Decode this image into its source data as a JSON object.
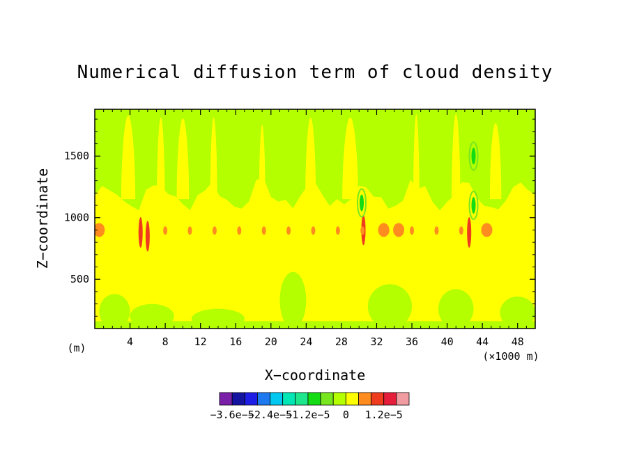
{
  "chart_data": {
    "type": "heatmap",
    "title": "Numerical diffusion term of cloud density",
    "xlabel": "X−coordinate",
    "ylabel": "Z−coordinate",
    "x_unit_label": "(×1000 m)",
    "y_unit_label": "(m)",
    "xlim": [
      0,
      50
    ],
    "ylim": [
      100,
      1880
    ],
    "x_ticks": [
      4,
      8,
      12,
      16,
      20,
      24,
      28,
      32,
      36,
      40,
      44,
      48
    ],
    "x_tick_labels": [
      "4",
      "8",
      "12",
      "16",
      "20",
      "24",
      "28",
      "32",
      "36",
      "40",
      "44",
      "48"
    ],
    "y_ticks": [
      500,
      1000,
      1500
    ],
    "y_tick_labels": [
      "500",
      "1000",
      "1500"
    ],
    "grid": false,
    "colorbar": {
      "orientation": "horizontal",
      "position": "bottom",
      "colors": [
        "#7a1fa8",
        "#1414a0",
        "#1e1ee6",
        "#1e78f0",
        "#00c8f0",
        "#00e6b4",
        "#1ee68c",
        "#14dc14",
        "#78e61e",
        "#b4ff00",
        "#ffff00",
        "#ff8c1e",
        "#f03c1e",
        "#e61e3c",
        "#f09ca0"
      ],
      "tick_labels": [
        "−3.6e−5",
        "−2.4e−5",
        "−1.2e−5",
        "0",
        "1.2e−5"
      ]
    },
    "regions": {
      "upper_band_z_range": [
        1150,
        1880
      ],
      "upper_band_class": "green (0 to -2.4e-6)",
      "middle_band_z_range": [
        500,
        1150
      ],
      "middle_band_class": "yellow (~0)",
      "lower_band_class": "mixed green/yellow",
      "positive_maxima": [
        {
          "x": 0.5,
          "z": 900,
          "class": "orange"
        },
        {
          "x": 6.0,
          "z": 850,
          "class": "red"
        },
        {
          "x": 5.2,
          "z": 880,
          "class": "red"
        },
        {
          "x": 30.5,
          "z": 900,
          "class": "red"
        },
        {
          "x": 32.8,
          "z": 900,
          "class": "orange"
        },
        {
          "x": 34.5,
          "z": 900,
          "class": "orange"
        },
        {
          "x": 42.5,
          "z": 880,
          "class": "red"
        },
        {
          "x": 44.5,
          "z": 900,
          "class": "orange"
        }
      ],
      "negative_minima": [
        {
          "x": 43.0,
          "z": 1500,
          "class": "green"
        },
        {
          "x": 43.0,
          "z": 1100,
          "class": "green"
        },
        {
          "x": 30.3,
          "z": 1120,
          "class": "green"
        }
      ]
    }
  }
}
